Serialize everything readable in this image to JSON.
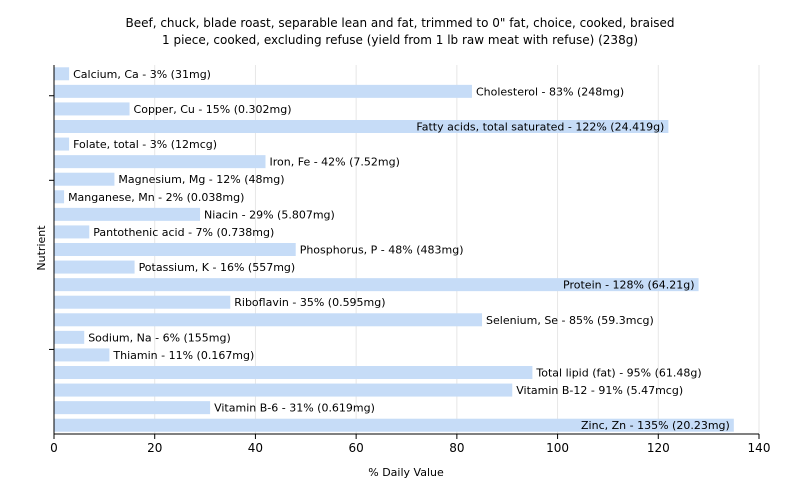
{
  "title_line1": "Beef, chuck, blade roast, separable lean and fat, trimmed to 0\" fat, choice, cooked, braised",
  "title_line2": "1 piece, cooked, excluding refuse (yield from 1 lb raw meat with refuse) (238g)",
  "colors": {
    "bar": "#c6dcf7",
    "grid": "#e6e6e6",
    "axis": "#000000"
  },
  "chart_data": {
    "type": "bar",
    "orientation": "horizontal",
    "xlabel": "% Daily Value",
    "ylabel": "Nutrient",
    "xlim": [
      0,
      140
    ],
    "xticks": [
      0,
      20,
      40,
      60,
      80,
      100,
      120,
      140
    ],
    "grid": true,
    "categories": [
      "Calcium, Ca",
      "Cholesterol",
      "Copper, Cu",
      "Fatty acids, total saturated",
      "Folate, total",
      "Iron, Fe",
      "Magnesium, Mg",
      "Manganese, Mn",
      "Niacin",
      "Pantothenic acid",
      "Phosphorus, P",
      "Potassium, K",
      "Protein",
      "Riboflavin",
      "Selenium, Se",
      "Sodium, Na",
      "Thiamin",
      "Total lipid (fat)",
      "Vitamin B-12",
      "Vitamin B-6",
      "Zinc, Zn"
    ],
    "values": [
      3,
      83,
      15,
      122,
      3,
      42,
      12,
      2,
      29,
      7,
      48,
      16,
      128,
      35,
      85,
      6,
      11,
      95,
      91,
      31,
      135
    ],
    "labels": [
      "Calcium, Ca - 3% (31mg)",
      "Cholesterol - 83% (248mg)",
      "Copper, Cu - 15% (0.302mg)",
      "Fatty acids, total saturated - 122% (24.419g)",
      "Folate, total - 3% (12mcg)",
      "Iron, Fe - 42% (7.52mg)",
      "Magnesium, Mg - 12% (48mg)",
      "Manganese, Mn - 2% (0.038mg)",
      "Niacin - 29% (5.807mg)",
      "Pantothenic acid - 7% (0.738mg)",
      "Phosphorus, P - 48% (483mg)",
      "Potassium, K - 16% (557mg)",
      "Protein - 128% (64.21g)",
      "Riboflavin - 35% (0.595mg)",
      "Selenium, Se - 85% (59.3mcg)",
      "Sodium, Na - 6% (155mg)",
      "Thiamin - 11% (0.167mg)",
      "Total lipid (fat) - 95% (61.48g)",
      "Vitamin B-12 - 91% (5.47mcg)",
      "Vitamin B-6 - 31% (0.619mg)",
      "Zinc, Zn - 135% (20.23mg)"
    ]
  }
}
